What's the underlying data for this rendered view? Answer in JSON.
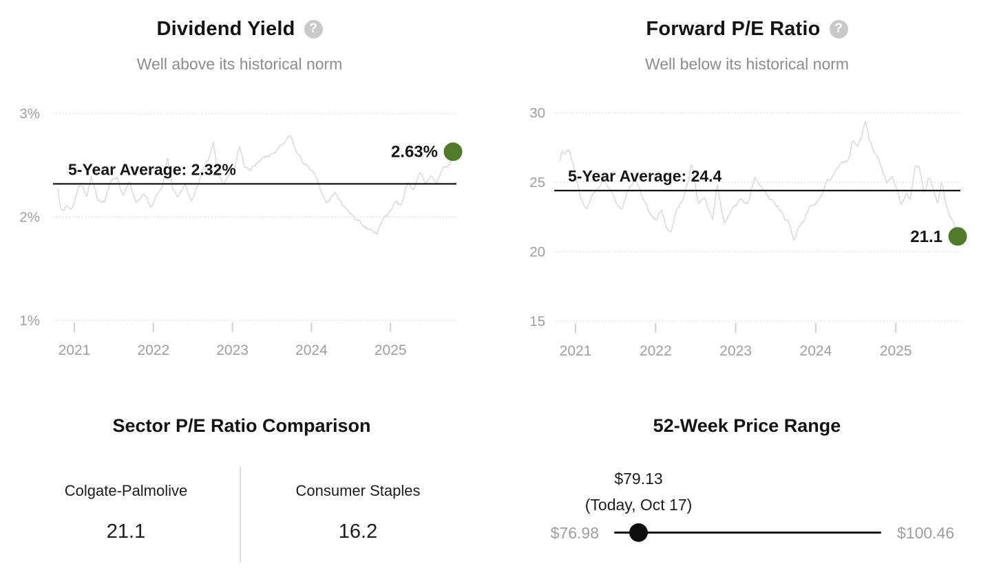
{
  "colors": {
    "accent_green": "#4f7b2a",
    "series_gray": "#d9d9d9",
    "grid_gray": "#d6d6d6",
    "tick_gray": "#cfcfcf",
    "axis_text_gray": "#9e9e9e",
    "subtitle_gray": "#8c8c8c",
    "text_black": "#161616",
    "help_icon_gray": "#c9c9c9",
    "divider_gray": "#dcdcdc"
  },
  "icons": {
    "help_glyph": "?"
  },
  "chart_data": [
    {
      "type": "line",
      "title": "Dividend Yield",
      "subtitle": "Well above its historical norm",
      "ylim": [
        1,
        3
      ],
      "x_range": [
        2020.79,
        2025.79
      ],
      "grid": "dotted-horizontal",
      "y_ticks": [
        {
          "value": 3,
          "label": "3%"
        },
        {
          "value": 2,
          "label": "2%"
        },
        {
          "value": 1,
          "label": "1%"
        }
      ],
      "x_ticks": [
        {
          "value": 2021,
          "label": "2021"
        },
        {
          "value": 2022,
          "label": "2022"
        },
        {
          "value": 2023,
          "label": "2023"
        },
        {
          "value": 2024,
          "label": "2024"
        },
        {
          "value": 2025,
          "label": "2025"
        }
      ],
      "average": 2.32,
      "average_label": "5-Year Average: 2.32%",
      "current": 2.63,
      "current_label": "2.63%",
      "keypoints": [
        [
          2020.79,
          2.28
        ],
        [
          2020.83,
          2.06
        ],
        [
          2020.9,
          2.1
        ],
        [
          2020.97,
          2.07
        ],
        [
          2021.05,
          2.28
        ],
        [
          2021.1,
          2.31
        ],
        [
          2021.16,
          2.19
        ],
        [
          2021.21,
          2.38
        ],
        [
          2021.3,
          2.15
        ],
        [
          2021.38,
          2.13
        ],
        [
          2021.46,
          2.35
        ],
        [
          2021.54,
          2.4
        ],
        [
          2021.62,
          2.22
        ],
        [
          2021.7,
          2.32
        ],
        [
          2021.78,
          2.12
        ],
        [
          2021.88,
          2.26
        ],
        [
          2021.97,
          2.1
        ],
        [
          2022.05,
          2.22
        ],
        [
          2022.12,
          2.32
        ],
        [
          2022.18,
          2.58
        ],
        [
          2022.24,
          2.28
        ],
        [
          2022.31,
          2.16
        ],
        [
          2022.4,
          2.32
        ],
        [
          2022.48,
          2.15
        ],
        [
          2022.56,
          2.3
        ],
        [
          2022.64,
          2.48
        ],
        [
          2022.7,
          2.56
        ],
        [
          2022.76,
          2.73
        ],
        [
          2022.82,
          2.42
        ],
        [
          2022.89,
          2.31
        ],
        [
          2022.97,
          2.44
        ],
        [
          2023.04,
          2.5
        ],
        [
          2023.09,
          2.67
        ],
        [
          2023.15,
          2.49
        ],
        [
          2023.22,
          2.44
        ],
        [
          2023.32,
          2.52
        ],
        [
          2023.42,
          2.57
        ],
        [
          2023.52,
          2.62
        ],
        [
          2023.62,
          2.69
        ],
        [
          2023.74,
          2.78
        ],
        [
          2023.81,
          2.63
        ],
        [
          2023.89,
          2.51
        ],
        [
          2023.97,
          2.45
        ],
        [
          2024.05,
          2.38
        ],
        [
          2024.13,
          2.26
        ],
        [
          2024.2,
          2.18
        ],
        [
          2024.3,
          2.26
        ],
        [
          2024.4,
          2.11
        ],
        [
          2024.5,
          2.04
        ],
        [
          2024.6,
          1.96
        ],
        [
          2024.7,
          1.9
        ],
        [
          2024.82,
          1.85
        ],
        [
          2024.91,
          2.0
        ],
        [
          2024.99,
          2.06
        ],
        [
          2025.07,
          2.16
        ],
        [
          2025.14,
          2.11
        ],
        [
          2025.22,
          2.3
        ],
        [
          2025.29,
          2.23
        ],
        [
          2025.37,
          2.4
        ],
        [
          2025.44,
          2.32
        ],
        [
          2025.51,
          2.38
        ],
        [
          2025.58,
          2.3
        ],
        [
          2025.66,
          2.47
        ],
        [
          2025.72,
          2.46
        ],
        [
          2025.77,
          2.55
        ],
        [
          2025.79,
          2.63
        ]
      ]
    },
    {
      "type": "line",
      "title": "Forward P/E Ratio",
      "subtitle": "Well below its historical norm",
      "ylim": [
        15,
        30
      ],
      "x_range": [
        2020.8,
        2025.77
      ],
      "grid": "dotted-horizontal",
      "y_ticks": [
        {
          "value": 30,
          "label": "30"
        },
        {
          "value": 25,
          "label": "25"
        },
        {
          "value": 20,
          "label": "20"
        },
        {
          "value": 15,
          "label": "15"
        }
      ],
      "x_ticks": [
        {
          "value": 2021,
          "label": "2021"
        },
        {
          "value": 2022,
          "label": "2022"
        },
        {
          "value": 2023,
          "label": "2023"
        },
        {
          "value": 2024,
          "label": "2024"
        },
        {
          "value": 2025,
          "label": "2025"
        }
      ],
      "average": 24.4,
      "average_label": "5-Year Average: 24.4",
      "current": 21.1,
      "current_label": "21.1",
      "keypoints": [
        [
          2020.8,
          26.4
        ],
        [
          2020.83,
          27.4
        ],
        [
          2020.87,
          27.1
        ],
        [
          2020.92,
          27.3
        ],
        [
          2021.0,
          25.4
        ],
        [
          2021.06,
          24.0
        ],
        [
          2021.14,
          23.2
        ],
        [
          2021.2,
          23.8
        ],
        [
          2021.28,
          24.4
        ],
        [
          2021.36,
          25.3
        ],
        [
          2021.44,
          24.2
        ],
        [
          2021.52,
          23.3
        ],
        [
          2021.58,
          23.0
        ],
        [
          2021.66,
          24.5
        ],
        [
          2021.75,
          25.1
        ],
        [
          2021.84,
          24.0
        ],
        [
          2021.92,
          23.0
        ],
        [
          2022.0,
          22.5
        ],
        [
          2022.07,
          23.2
        ],
        [
          2022.13,
          22.0
        ],
        [
          2022.19,
          21.7
        ],
        [
          2022.27,
          23.3
        ],
        [
          2022.35,
          24.0
        ],
        [
          2022.41,
          25.1
        ],
        [
          2022.45,
          26.4
        ],
        [
          2022.53,
          23.4
        ],
        [
          2022.61,
          23.8
        ],
        [
          2022.71,
          22.3
        ],
        [
          2022.77,
          24.8
        ],
        [
          2022.86,
          22.0
        ],
        [
          2022.95,
          23.2
        ],
        [
          2023.06,
          23.7
        ],
        [
          2023.15,
          23.3
        ],
        [
          2023.24,
          25.5
        ],
        [
          2023.33,
          24.8
        ],
        [
          2023.43,
          23.8
        ],
        [
          2023.53,
          23.3
        ],
        [
          2023.61,
          22.5
        ],
        [
          2023.67,
          22.1
        ],
        [
          2023.73,
          20.9
        ],
        [
          2023.79,
          21.7
        ],
        [
          2023.85,
          22.2
        ],
        [
          2023.92,
          23.2
        ],
        [
          2024.0,
          23.6
        ],
        [
          2024.08,
          24.2
        ],
        [
          2024.15,
          25.0
        ],
        [
          2024.22,
          25.5
        ],
        [
          2024.29,
          25.8
        ],
        [
          2024.35,
          26.1
        ],
        [
          2024.41,
          26.4
        ],
        [
          2024.46,
          27.6
        ],
        [
          2024.51,
          27.3
        ],
        [
          2024.56,
          27.8
        ],
        [
          2024.62,
          29.3
        ],
        [
          2024.67,
          28.0
        ],
        [
          2024.72,
          27.2
        ],
        [
          2024.77,
          26.6
        ],
        [
          2024.83,
          25.6
        ],
        [
          2024.89,
          24.8
        ],
        [
          2024.95,
          25.3
        ],
        [
          2025.01,
          24.2
        ],
        [
          2025.07,
          23.3
        ],
        [
          2025.13,
          24.0
        ],
        [
          2025.18,
          23.4
        ],
        [
          2025.24,
          25.8
        ],
        [
          2025.29,
          26.1
        ],
        [
          2025.35,
          24.2
        ],
        [
          2025.41,
          25.4
        ],
        [
          2025.47,
          24.6
        ],
        [
          2025.52,
          23.6
        ],
        [
          2025.57,
          25.1
        ],
        [
          2025.63,
          23.3
        ],
        [
          2025.67,
          22.6
        ],
        [
          2025.71,
          22.3
        ],
        [
          2025.75,
          21.6
        ],
        [
          2025.77,
          21.1
        ]
      ]
    },
    {
      "type": "table",
      "title": "Sector P/E Ratio Comparison",
      "columns": [
        {
          "label": "Colgate-Palmolive",
          "value": "21.1"
        },
        {
          "label": "Consumer Staples",
          "value": "16.2"
        }
      ]
    },
    {
      "type": "range",
      "title": "52-Week Price Range",
      "low": 76.98,
      "high": 100.46,
      "current": 79.13,
      "low_label": "$76.98",
      "high_label": "$100.46",
      "current_label": "$79.13",
      "current_sublabel": "(Today, Oct 17)"
    }
  ]
}
